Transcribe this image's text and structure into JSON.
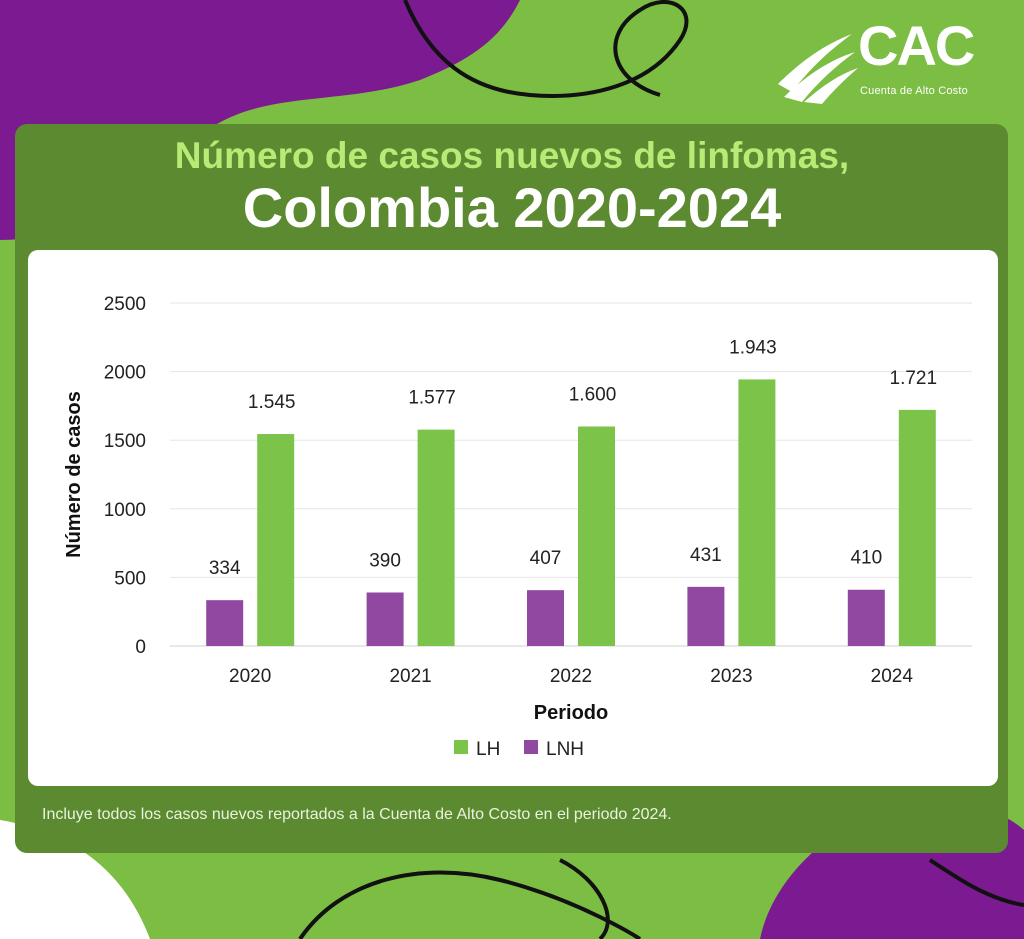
{
  "brand": {
    "logo_text": "CAC",
    "logo_subtitle": "Cuenta de Alto Costo"
  },
  "header": {
    "title_line1": "Número de casos nuevos de linfomas,",
    "title_line2": "Colombia 2020-2024"
  },
  "footnote": "Incluye todos los casos nuevos reportados a la Cuenta de Alto Costo en el periodo 2024.",
  "colors": {
    "background_green": "#7cbd44",
    "card_green": "#5c8a31",
    "purple": "#7b1a91",
    "series_lh": "#7cc34a",
    "series_lnh": "#9048a1"
  },
  "chart_data": {
    "type": "bar",
    "title": "",
    "xlabel": "Periodo",
    "ylabel": "Número de casos",
    "categories": [
      "2020",
      "2021",
      "2022",
      "2023",
      "2024"
    ],
    "ylim": [
      0,
      2500
    ],
    "yticks": [
      0,
      500,
      1000,
      1500,
      2000,
      2500
    ],
    "grid": true,
    "legend_position": "bottom",
    "series": [
      {
        "name": "LNH",
        "color": "#9048a1",
        "values": [
          334,
          390,
          407,
          431,
          410
        ],
        "labels": [
          "334",
          "390",
          "407",
          "431",
          "410"
        ]
      },
      {
        "name": "LH",
        "color": "#7cc34a",
        "values": [
          1545,
          1577,
          1600,
          1943,
          1721
        ],
        "labels": [
          "1.545",
          "1.577",
          "1.600",
          "1.943",
          "1.721"
        ]
      }
    ],
    "legend_order": [
      "LH",
      "LNH"
    ]
  }
}
